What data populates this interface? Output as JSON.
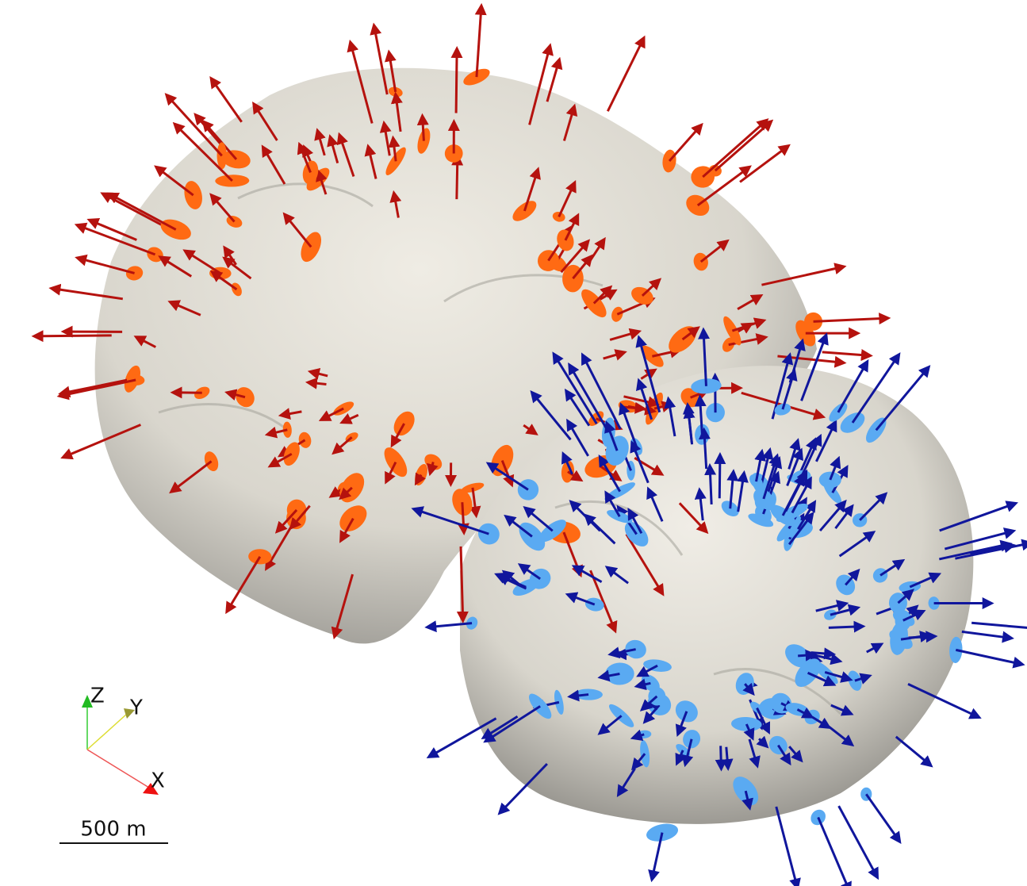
{
  "axes": {
    "z": "Z",
    "y": "Y",
    "x": "X"
  },
  "scale_bar": {
    "label": "500 m"
  }
}
